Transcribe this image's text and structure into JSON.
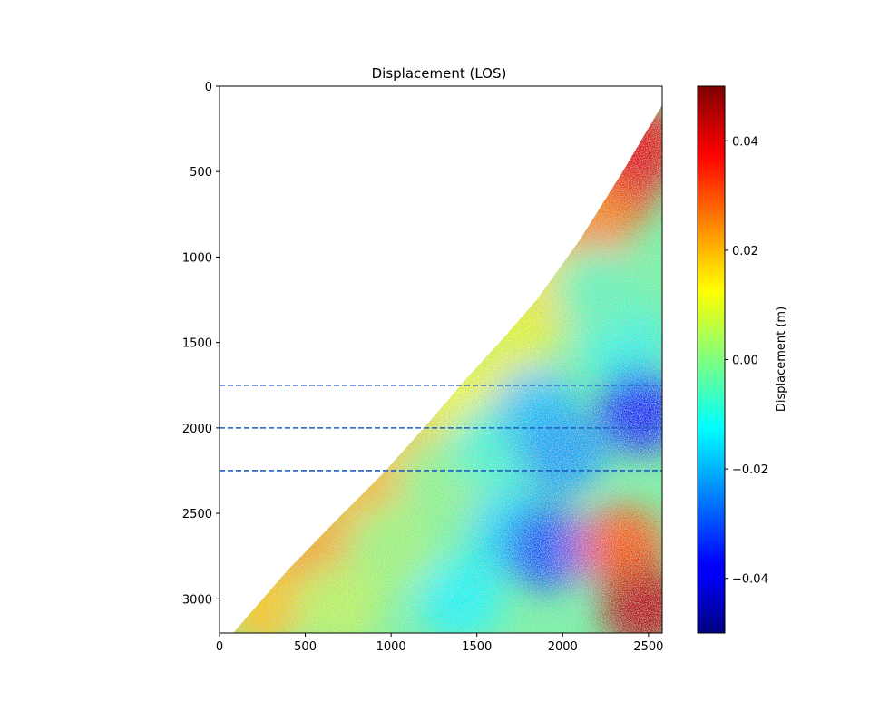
{
  "chart_data": {
    "type": "heatmap",
    "title": "Displacement (LOS)",
    "xlabel": "",
    "ylabel": "",
    "xlim": [
      0,
      2580
    ],
    "ylim": [
      3200,
      0
    ],
    "x_ticks": [
      0,
      500,
      1000,
      1500,
      2000,
      2500
    ],
    "y_ticks": [
      0,
      500,
      1000,
      1500,
      2000,
      2500,
      3000
    ],
    "colorbar": {
      "label": "Displacement (m)",
      "colormap": "jet",
      "range": [
        -0.05,
        0.05
      ],
      "ticks": [
        0.04,
        0.02,
        0.0,
        -0.02,
        -0.04
      ],
      "tick_labels": [
        "0.04",
        "0.02",
        "0.00",
        "−0.02",
        "−0.04"
      ]
    },
    "coast_boundary": [
      {
        "x": 2580,
        "y": 110
      },
      {
        "x": 2350,
        "y": 500
      },
      {
        "x": 2100,
        "y": 900
      },
      {
        "x": 1850,
        "y": 1250
      },
      {
        "x": 1650,
        "y": 1480
      },
      {
        "x": 1450,
        "y": 1700
      },
      {
        "x": 1200,
        "y": 1990
      },
      {
        "x": 950,
        "y": 2270
      },
      {
        "x": 700,
        "y": 2520
      },
      {
        "x": 400,
        "y": 2830
      },
      {
        "x": 80,
        "y": 3200
      }
    ],
    "reference_lines": [
      {
        "y": 1750,
        "style": "dashed",
        "color": "#1f5fbf"
      },
      {
        "y": 2000,
        "style": "dashed",
        "color": "#1f5fbf"
      },
      {
        "y": 2250,
        "style": "dashed",
        "color": "#1f5fbf"
      }
    ],
    "displacement_patches": [
      {
        "x": 2300,
        "y": 600,
        "value": 0.035
      },
      {
        "x": 2450,
        "y": 350,
        "value": 0.04
      },
      {
        "x": 2150,
        "y": 850,
        "value": 0.025
      },
      {
        "x": 1950,
        "y": 1200,
        "value": 0.015
      },
      {
        "x": 1700,
        "y": 1500,
        "value": 0.01
      },
      {
        "x": 1400,
        "y": 1850,
        "value": 0.012
      },
      {
        "x": 1100,
        "y": 2150,
        "value": 0.018
      },
      {
        "x": 800,
        "y": 2450,
        "value": 0.02
      },
      {
        "x": 500,
        "y": 2800,
        "value": 0.022
      },
      {
        "x": 250,
        "y": 3050,
        "value": 0.018
      },
      {
        "x": 1300,
        "y": 2300,
        "value": 0.0
      },
      {
        "x": 1000,
        "y": 2700,
        "value": 0.002
      },
      {
        "x": 1600,
        "y": 2100,
        "value": -0.008
      },
      {
        "x": 1850,
        "y": 1900,
        "value": -0.018
      },
      {
        "x": 2000,
        "y": 2150,
        "value": -0.022
      },
      {
        "x": 2350,
        "y": 1500,
        "value": -0.01
      },
      {
        "x": 2200,
        "y": 1200,
        "value": -0.005
      },
      {
        "x": 1700,
        "y": 2600,
        "value": -0.015
      },
      {
        "x": 1900,
        "y": 2700,
        "value": -0.03
      },
      {
        "x": 2450,
        "y": 1900,
        "value": -0.035
      },
      {
        "x": 2350,
        "y": 2700,
        "value": 0.03
      },
      {
        "x": 2480,
        "y": 3050,
        "value": 0.045
      },
      {
        "x": 1400,
        "y": 3000,
        "value": -0.012
      },
      {
        "x": 700,
        "y": 3050,
        "value": 0.005
      }
    ]
  }
}
